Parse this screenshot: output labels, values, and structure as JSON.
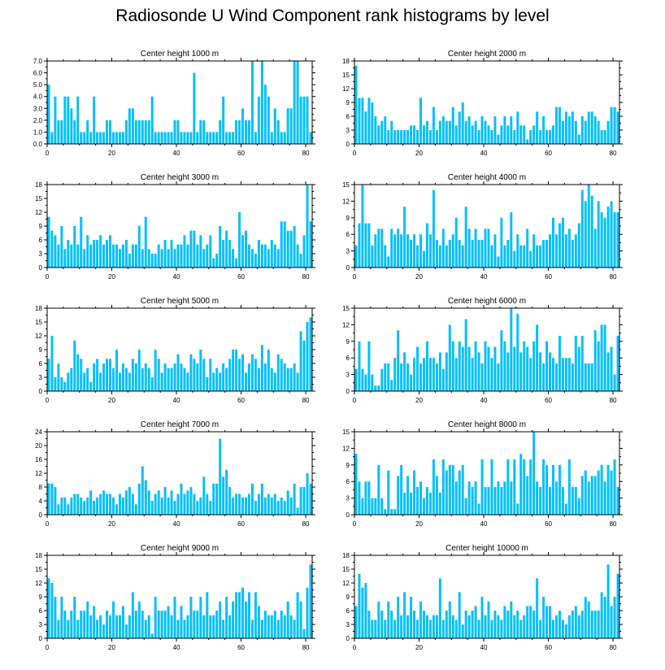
{
  "title": "Radiosonde U Wind Component rank histograms by level",
  "bar_color": "#00bfff",
  "chart_data": [
    {
      "type": "bar",
      "title": "Center height 1000 m",
      "xlim": [
        0,
        82
      ],
      "ylim": [
        0,
        7
      ],
      "yticks": [
        0.0,
        1.0,
        2.0,
        3.0,
        4.0,
        5.0,
        6.0,
        7.0
      ],
      "ytick_labels": [
        "0.0",
        "1.0",
        "2.0",
        "3.0",
        "4.0",
        "5.0",
        "6.0",
        "7.0"
      ],
      "xticks": [
        0,
        20,
        40,
        60,
        80
      ],
      "values": [
        5,
        1,
        4,
        2,
        2,
        4,
        4,
        3,
        2,
        4,
        1,
        1,
        2,
        1,
        4,
        1,
        1,
        1,
        2,
        2,
        1,
        1,
        1,
        1,
        2,
        3,
        3,
        2,
        2,
        2,
        2,
        2,
        4,
        1,
        1,
        1,
        1,
        1,
        1,
        2,
        2,
        1,
        1,
        1,
        1,
        6,
        1,
        2,
        2,
        1,
        1,
        1,
        1,
        2,
        4,
        1,
        1,
        1,
        2,
        2,
        3,
        2,
        2,
        7,
        1,
        4,
        7,
        5,
        4,
        1,
        3,
        2,
        1,
        1,
        3,
        3,
        7,
        7,
        4,
        4,
        4,
        1
      ]
    },
    {
      "type": "bar",
      "title": "Center height 2000 m",
      "xlim": [
        0,
        82
      ],
      "ylim": [
        0,
        18
      ],
      "yticks": [
        0,
        3,
        6,
        9,
        12,
        15,
        18
      ],
      "ytick_labels": [
        "0",
        "3",
        "6",
        "9",
        "12",
        "15",
        "18"
      ],
      "xticks": [
        0,
        20,
        40,
        60,
        80
      ],
      "values": [
        17,
        10,
        10,
        7,
        10,
        9,
        6,
        4,
        5,
        6,
        3,
        5,
        3,
        3,
        3,
        3,
        3,
        4,
        4,
        3,
        10,
        4,
        5,
        3,
        8,
        3,
        5,
        6,
        5,
        5,
        8,
        4,
        7,
        9,
        5,
        6,
        4,
        5,
        3,
        6,
        5,
        4,
        3,
        6,
        2,
        4,
        6,
        4,
        6,
        3,
        7,
        4,
        4,
        1,
        3,
        4,
        7,
        3,
        6,
        3,
        3,
        4,
        8,
        8,
        5,
        7,
        6,
        7,
        5,
        2,
        6,
        5,
        7,
        7,
        6,
        5,
        3,
        3,
        5,
        8,
        8,
        7
      ]
    },
    {
      "type": "bar",
      "title": "Center height 3000 m",
      "xlim": [
        0,
        82
      ],
      "ylim": [
        0,
        18
      ],
      "yticks": [
        0,
        3,
        6,
        9,
        12,
        15,
        18
      ],
      "ytick_labels": [
        "0",
        "3",
        "6",
        "9",
        "12",
        "15",
        "18"
      ],
      "xticks": [
        0,
        20,
        40,
        60,
        80
      ],
      "values": [
        11,
        8,
        7,
        5,
        9,
        4,
        6,
        5,
        9,
        5,
        11,
        4,
        7,
        5,
        6,
        6,
        7,
        5,
        6,
        7,
        5,
        5,
        4,
        5,
        6,
        3,
        5,
        5,
        9,
        4,
        11,
        4,
        3,
        3,
        5,
        4,
        6,
        4,
        6,
        4,
        5,
        5,
        7,
        5,
        8,
        8,
        5,
        7,
        4,
        5,
        7,
        2,
        3,
        9,
        6,
        8,
        6,
        4,
        2,
        12,
        7,
        8,
        5,
        4,
        3,
        6,
        5,
        5,
        4,
        6,
        5,
        4,
        10,
        10,
        8,
        8,
        9,
        5,
        3,
        7,
        18,
        10
      ]
    },
    {
      "type": "bar",
      "title": "Center height 4000 m",
      "xlim": [
        0,
        82
      ],
      "ylim": [
        0,
        15
      ],
      "yticks": [
        0,
        3,
        6,
        9,
        12,
        15
      ],
      "ytick_labels": [
        "0",
        "3",
        "6",
        "9",
        "12",
        "15"
      ],
      "xticks": [
        0,
        20,
        40,
        60,
        80
      ],
      "values": [
        4,
        8,
        15,
        8,
        8,
        4,
        6,
        7,
        7,
        4,
        2,
        7,
        6,
        7,
        6,
        11,
        6,
        5,
        6,
        4,
        6,
        3,
        8,
        6,
        14,
        5,
        4,
        7,
        4,
        5,
        6,
        9,
        5,
        4,
        11,
        7,
        5,
        7,
        5,
        5,
        7,
        7,
        4,
        6,
        2,
        9,
        4,
        5,
        10,
        3,
        6,
        4,
        4,
        7,
        3,
        6,
        4,
        4,
        5,
        5,
        6,
        9,
        6,
        8,
        9,
        6,
        7,
        5,
        6,
        8,
        14,
        12,
        15,
        13,
        7,
        12,
        10,
        9,
        11,
        12,
        10,
        10
      ]
    },
    {
      "type": "bar",
      "title": "Center height 5000 m",
      "xlim": [
        0,
        82
      ],
      "ylim": [
        0,
        18
      ],
      "yticks": [
        0,
        3,
        6,
        9,
        12,
        15,
        18
      ],
      "ytick_labels": [
        "0",
        "3",
        "6",
        "9",
        "12",
        "15",
        "18"
      ],
      "xticks": [
        0,
        20,
        40,
        60,
        80
      ],
      "values": [
        7,
        12,
        3,
        6,
        3,
        2,
        4,
        5,
        11,
        8,
        7,
        4,
        5,
        2,
        6,
        7,
        4,
        6,
        7,
        7,
        5,
        9,
        4,
        6,
        5,
        4,
        7,
        6,
        9,
        5,
        6,
        5,
        3,
        9,
        7,
        4,
        6,
        5,
        5,
        6,
        8,
        6,
        5,
        4,
        8,
        7,
        6,
        9,
        7,
        3,
        7,
        4,
        5,
        4,
        6,
        5,
        7,
        9,
        9,
        7,
        8,
        4,
        6,
        8,
        7,
        5,
        10,
        6,
        9,
        5,
        4,
        8,
        7,
        6,
        5,
        5,
        6,
        4,
        13,
        11,
        15,
        16
      ]
    },
    {
      "type": "bar",
      "title": "Center height 6000 m",
      "xlim": [
        0,
        82
      ],
      "ylim": [
        0,
        15
      ],
      "yticks": [
        0,
        3,
        6,
        9,
        12,
        15
      ],
      "ytick_labels": [
        "0",
        "3",
        "6",
        "9",
        "12",
        "15"
      ],
      "xticks": [
        0,
        20,
        40,
        60,
        80
      ],
      "values": [
        4,
        9,
        4,
        3,
        9,
        3,
        1,
        1,
        4,
        5,
        5,
        2,
        6,
        11,
        5,
        7,
        5,
        3,
        6,
        8,
        5,
        6,
        9,
        6,
        6,
        5,
        7,
        4,
        7,
        12,
        9,
        6,
        9,
        8,
        13,
        8,
        6,
        9,
        7,
        5,
        9,
        8,
        6,
        8,
        5,
        11,
        9,
        7,
        15,
        8,
        14,
        7,
        9,
        8,
        6,
        9,
        12,
        7,
        5,
        9,
        7,
        6,
        5,
        10,
        6,
        6,
        6,
        5,
        10,
        8,
        10,
        5,
        5,
        5,
        11,
        9,
        12,
        12,
        7,
        8,
        3,
        10
      ]
    },
    {
      "type": "bar",
      "title": "Center height 7000 m",
      "xlim": [
        0,
        82
      ],
      "ylim": [
        0,
        24
      ],
      "yticks": [
        0,
        4,
        8,
        12,
        16,
        20,
        24
      ],
      "ytick_labels": [
        "0",
        "4",
        "8",
        "12",
        "16",
        "20",
        "24"
      ],
      "xticks": [
        0,
        20,
        40,
        60,
        80
      ],
      "values": [
        9,
        9,
        8,
        3,
        5,
        5,
        3,
        5,
        6,
        6,
        5,
        4,
        5,
        7,
        4,
        5,
        6,
        7,
        6,
        6,
        5,
        3,
        6,
        5,
        7,
        8,
        6,
        3,
        9,
        14,
        10,
        7,
        4,
        6,
        7,
        5,
        8,
        5,
        7,
        4,
        6,
        9,
        6,
        7,
        8,
        6,
        4,
        5,
        11,
        6,
        4,
        9,
        9,
        22,
        11,
        13,
        8,
        5,
        6,
        6,
        5,
        5,
        6,
        9,
        4,
        6,
        9,
        5,
        6,
        5,
        6,
        4,
        5,
        4,
        7,
        5,
        9,
        2,
        8,
        8,
        12,
        9
      ]
    },
    {
      "type": "bar",
      "title": "Center height 8000 m",
      "xlim": [
        0,
        82
      ],
      "ylim": [
        0,
        15
      ],
      "yticks": [
        0,
        3,
        6,
        9,
        12,
        15
      ],
      "ytick_labels": [
        "0",
        "3",
        "6",
        "9",
        "12",
        "15"
      ],
      "xticks": [
        0,
        20,
        40,
        60,
        80
      ],
      "values": [
        11,
        6,
        3,
        6,
        6,
        3,
        3,
        9,
        3,
        1,
        8,
        1,
        1,
        7,
        9,
        4,
        7,
        4,
        8,
        5,
        6,
        3,
        5,
        4,
        10,
        7,
        4,
        10,
        8,
        9,
        9,
        6,
        8,
        9,
        3,
        6,
        5,
        6,
        2,
        10,
        5,
        5,
        10,
        5,
        6,
        5,
        6,
        10,
        6,
        10,
        2,
        11,
        10,
        7,
        10,
        15,
        6,
        5,
        10,
        9,
        5,
        9,
        6,
        9,
        5,
        2,
        10,
        5,
        5,
        3,
        7,
        8,
        6,
        7,
        7,
        8,
        9,
        6,
        9,
        8,
        10,
        5,
        8
      ]
    },
    {
      "type": "bar",
      "title": "Center height 9000 m",
      "xlim": [
        0,
        82
      ],
      "ylim": [
        0,
        18
      ],
      "yticks": [
        0,
        3,
        6,
        9,
        12,
        15,
        18
      ],
      "ytick_labels": [
        "0",
        "3",
        "6",
        "9",
        "12",
        "15",
        "18"
      ],
      "xticks": [
        0,
        20,
        40,
        60,
        80
      ],
      "values": [
        13,
        12,
        9,
        4,
        9,
        6,
        4,
        6,
        9,
        4,
        6,
        6,
        8,
        5,
        7,
        4,
        5,
        3,
        6,
        5,
        8,
        5,
        5,
        7,
        3,
        5,
        10,
        6,
        8,
        6,
        4,
        5,
        1,
        9,
        6,
        6,
        6,
        7,
        5,
        9,
        4,
        7,
        4,
        5,
        9,
        6,
        6,
        9,
        5,
        10,
        5,
        5,
        6,
        8,
        4,
        9,
        5,
        8,
        10,
        10,
        11,
        8,
        10,
        4,
        10,
        7,
        4,
        6,
        5,
        5,
        6,
        4,
        6,
        5,
        8,
        5,
        4,
        10,
        8,
        2,
        11,
        16
      ]
    },
    {
      "type": "bar",
      "title": "Center height 10000 m",
      "xlim": [
        0,
        82
      ],
      "ylim": [
        0,
        18
      ],
      "yticks": [
        0,
        3,
        6,
        9,
        12,
        15,
        18
      ],
      "ytick_labels": [
        "0",
        "3",
        "6",
        "9",
        "12",
        "15",
        "18"
      ],
      "xticks": [
        0,
        20,
        40,
        60,
        80
      ],
      "values": [
        7,
        14,
        11,
        12,
        6,
        4,
        4,
        8,
        6,
        4,
        8,
        6,
        4,
        9,
        5,
        10,
        5,
        9,
        6,
        4,
        8,
        6,
        5,
        4,
        5,
        5,
        13,
        4,
        6,
        8,
        5,
        4,
        10,
        3,
        6,
        5,
        6,
        7,
        4,
        9,
        5,
        8,
        4,
        6,
        5,
        4,
        7,
        6,
        8,
        5,
        6,
        4,
        5,
        7,
        7,
        6,
        13,
        4,
        9,
        7,
        7,
        4,
        5,
        6,
        4,
        3,
        5,
        6,
        7,
        5,
        6,
        9,
        8,
        6,
        6,
        6,
        10,
        9,
        16,
        7,
        9,
        14
      ]
    }
  ]
}
